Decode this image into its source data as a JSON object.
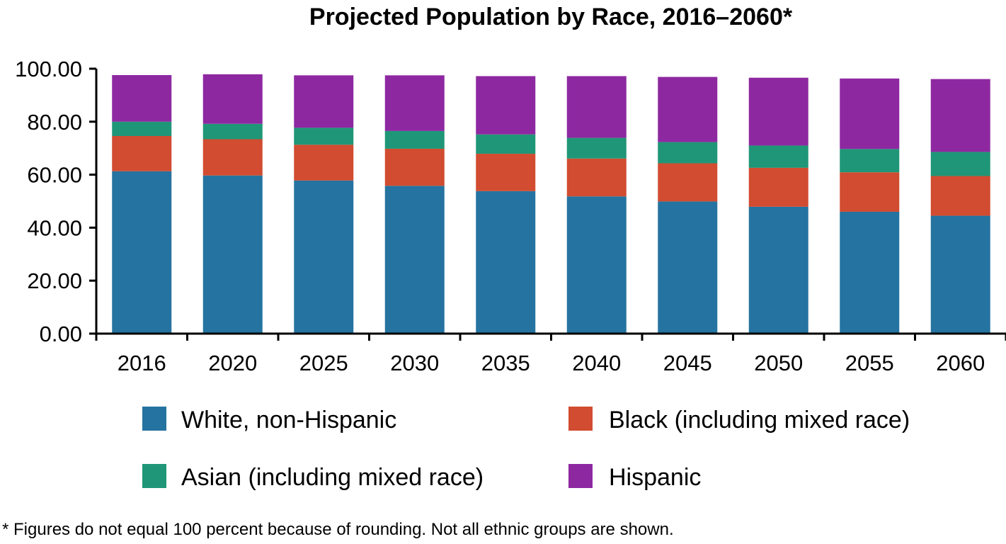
{
  "chart_data": {
    "type": "bar",
    "stacked": true,
    "title": "Projected Population by Race, 2016–2060*",
    "footnote": "* Figures do not equal 100 percent because of rounding. Not all ethnic groups are shown.",
    "categories": [
      "2016",
      "2020",
      "2025",
      "2030",
      "2035",
      "2040",
      "2045",
      "2050",
      "2055",
      "2060"
    ],
    "ylim": [
      0,
      100
    ],
    "yticks": [
      "0.00",
      "20.00",
      "40.00",
      "60.00",
      "80.00",
      "100.00"
    ],
    "grid": false,
    "legend_position": "bottom",
    "series": [
      {
        "name": "White, non-Hispanic",
        "color": "#2573a0",
        "values": [
          61.3,
          59.7,
          57.8,
          55.8,
          53.8,
          51.8,
          49.9,
          47.9,
          46.0,
          44.5
        ]
      },
      {
        "name": "Black (including mixed race)",
        "color": "#d14c30",
        "values": [
          13.3,
          13.7,
          13.5,
          14.0,
          14.1,
          14.3,
          14.4,
          14.7,
          14.9,
          15.0
        ]
      },
      {
        "name": "Asian (including mixed race)",
        "color": "#1f9677",
        "values": [
          5.4,
          5.8,
          6.4,
          6.7,
          7.3,
          7.8,
          8.0,
          8.4,
          8.8,
          9.1
        ]
      },
      {
        "name": "Hispanic",
        "color": "#8e28a1",
        "values": [
          17.6,
          18.7,
          19.8,
          21.0,
          22.0,
          23.3,
          24.6,
          25.6,
          26.6,
          27.5
        ]
      }
    ]
  }
}
